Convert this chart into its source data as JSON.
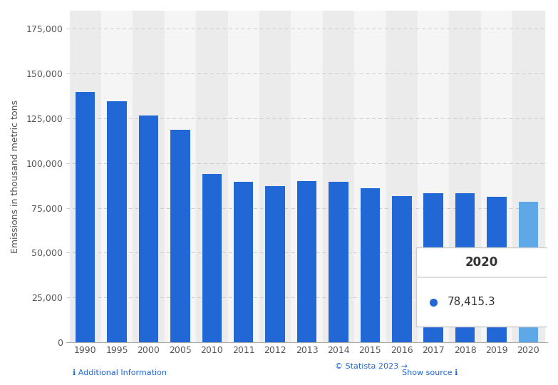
{
  "categories": [
    "1990",
    "1995",
    "2000",
    "2005",
    "2010",
    "2011",
    "2012",
    "2013",
    "2014",
    "2015",
    "2016",
    "2017",
    "2018",
    "2019",
    "2020"
  ],
  "values": [
    139500,
    134500,
    126500,
    118500,
    94000,
    89500,
    87000,
    90000,
    89500,
    86000,
    81500,
    83000,
    83000,
    81000,
    78415.3
  ],
  "bar_color_default": "#2167d5",
  "bar_color_highlight": "#5fa8e8",
  "highlighted_bar": "2020",
  "ylabel": "Emissions in thousand metric tons",
  "ylim": [
    0,
    185000
  ],
  "yticks": [
    0,
    25000,
    50000,
    75000,
    100000,
    125000,
    150000,
    175000
  ],
  "ytick_labels": [
    "0",
    "25,000",
    "50,000",
    "75,000",
    "100,000",
    "125,000",
    "150,000",
    "175,000"
  ],
  "tooltip_year": "2020",
  "tooltip_value": "78,415.3",
  "tooltip_dot_color": "#2167d5",
  "background_color": "#ffffff",
  "plot_bg_color": "#ffffff",
  "col_bg_odd": "#ebebeb",
  "col_bg_even": "#f5f5f5",
  "grid_color": "#cccccc",
  "font_color": "#555555",
  "statista_text": "© Statista 2023",
  "additional_info_text": "Additional Information",
  "show_source_text": "Show source"
}
